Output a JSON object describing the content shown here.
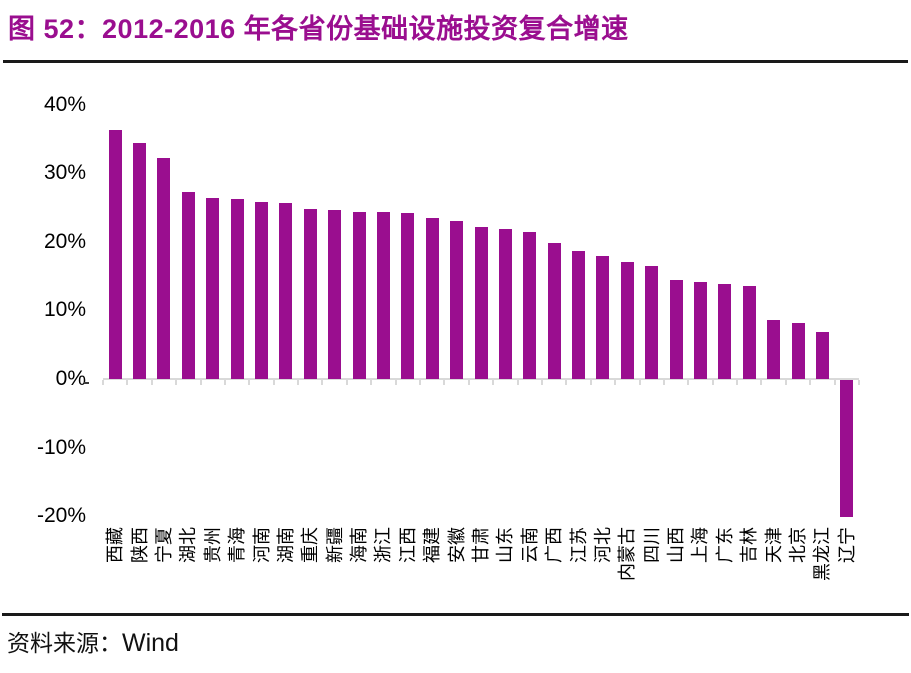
{
  "title": "图 52：2012-2016 年各省份基础设施投资复合增速",
  "source": {
    "label": "资料来源：",
    "value": "Wind"
  },
  "colors": {
    "bar": "#9A0E8F",
    "title": "#9A0E8F",
    "axis": "#D9D9D9",
    "rule": "#1A1A1A",
    "text": "#000000"
  },
  "chart_data": {
    "type": "bar",
    "title": "2012-2016 年各省份基础设施投资复合增速",
    "categories": [
      "西藏",
      "陕西",
      "宁夏",
      "湖北",
      "贵州",
      "青海",
      "河南",
      "湖南",
      "重庆",
      "新疆",
      "海南",
      "浙江",
      "江西",
      "福建",
      "安徽",
      "甘肃",
      "山东",
      "云南",
      "广西",
      "江苏",
      "河北",
      "内蒙古",
      "四川",
      "山西",
      "上海",
      "广东",
      "吉林",
      "天津",
      "北京",
      "黑龙江",
      "辽宁"
    ],
    "values": [
      36.3,
      34.4,
      32.2,
      27.2,
      26.4,
      26.2,
      25.8,
      25.6,
      24.8,
      24.6,
      24.4,
      24.3,
      24.2,
      23.4,
      23.0,
      22.1,
      21.9,
      21.4,
      19.8,
      18.6,
      18.0,
      17.1,
      16.4,
      14.5,
      14.2,
      13.8,
      13.6,
      8.6,
      8.2,
      6.8,
      -19.9
    ],
    "unit": "%",
    "y_ticks": [
      "40%",
      "30%",
      "20%",
      "10%",
      "0%",
      "-10%",
      "-20%"
    ],
    "ylim": [
      -20,
      40
    ],
    "xlabel": "",
    "ylabel": "",
    "grid": false,
    "legend": "none",
    "bar_color": "#9A0E8F",
    "x_label_rotation": -90
  }
}
